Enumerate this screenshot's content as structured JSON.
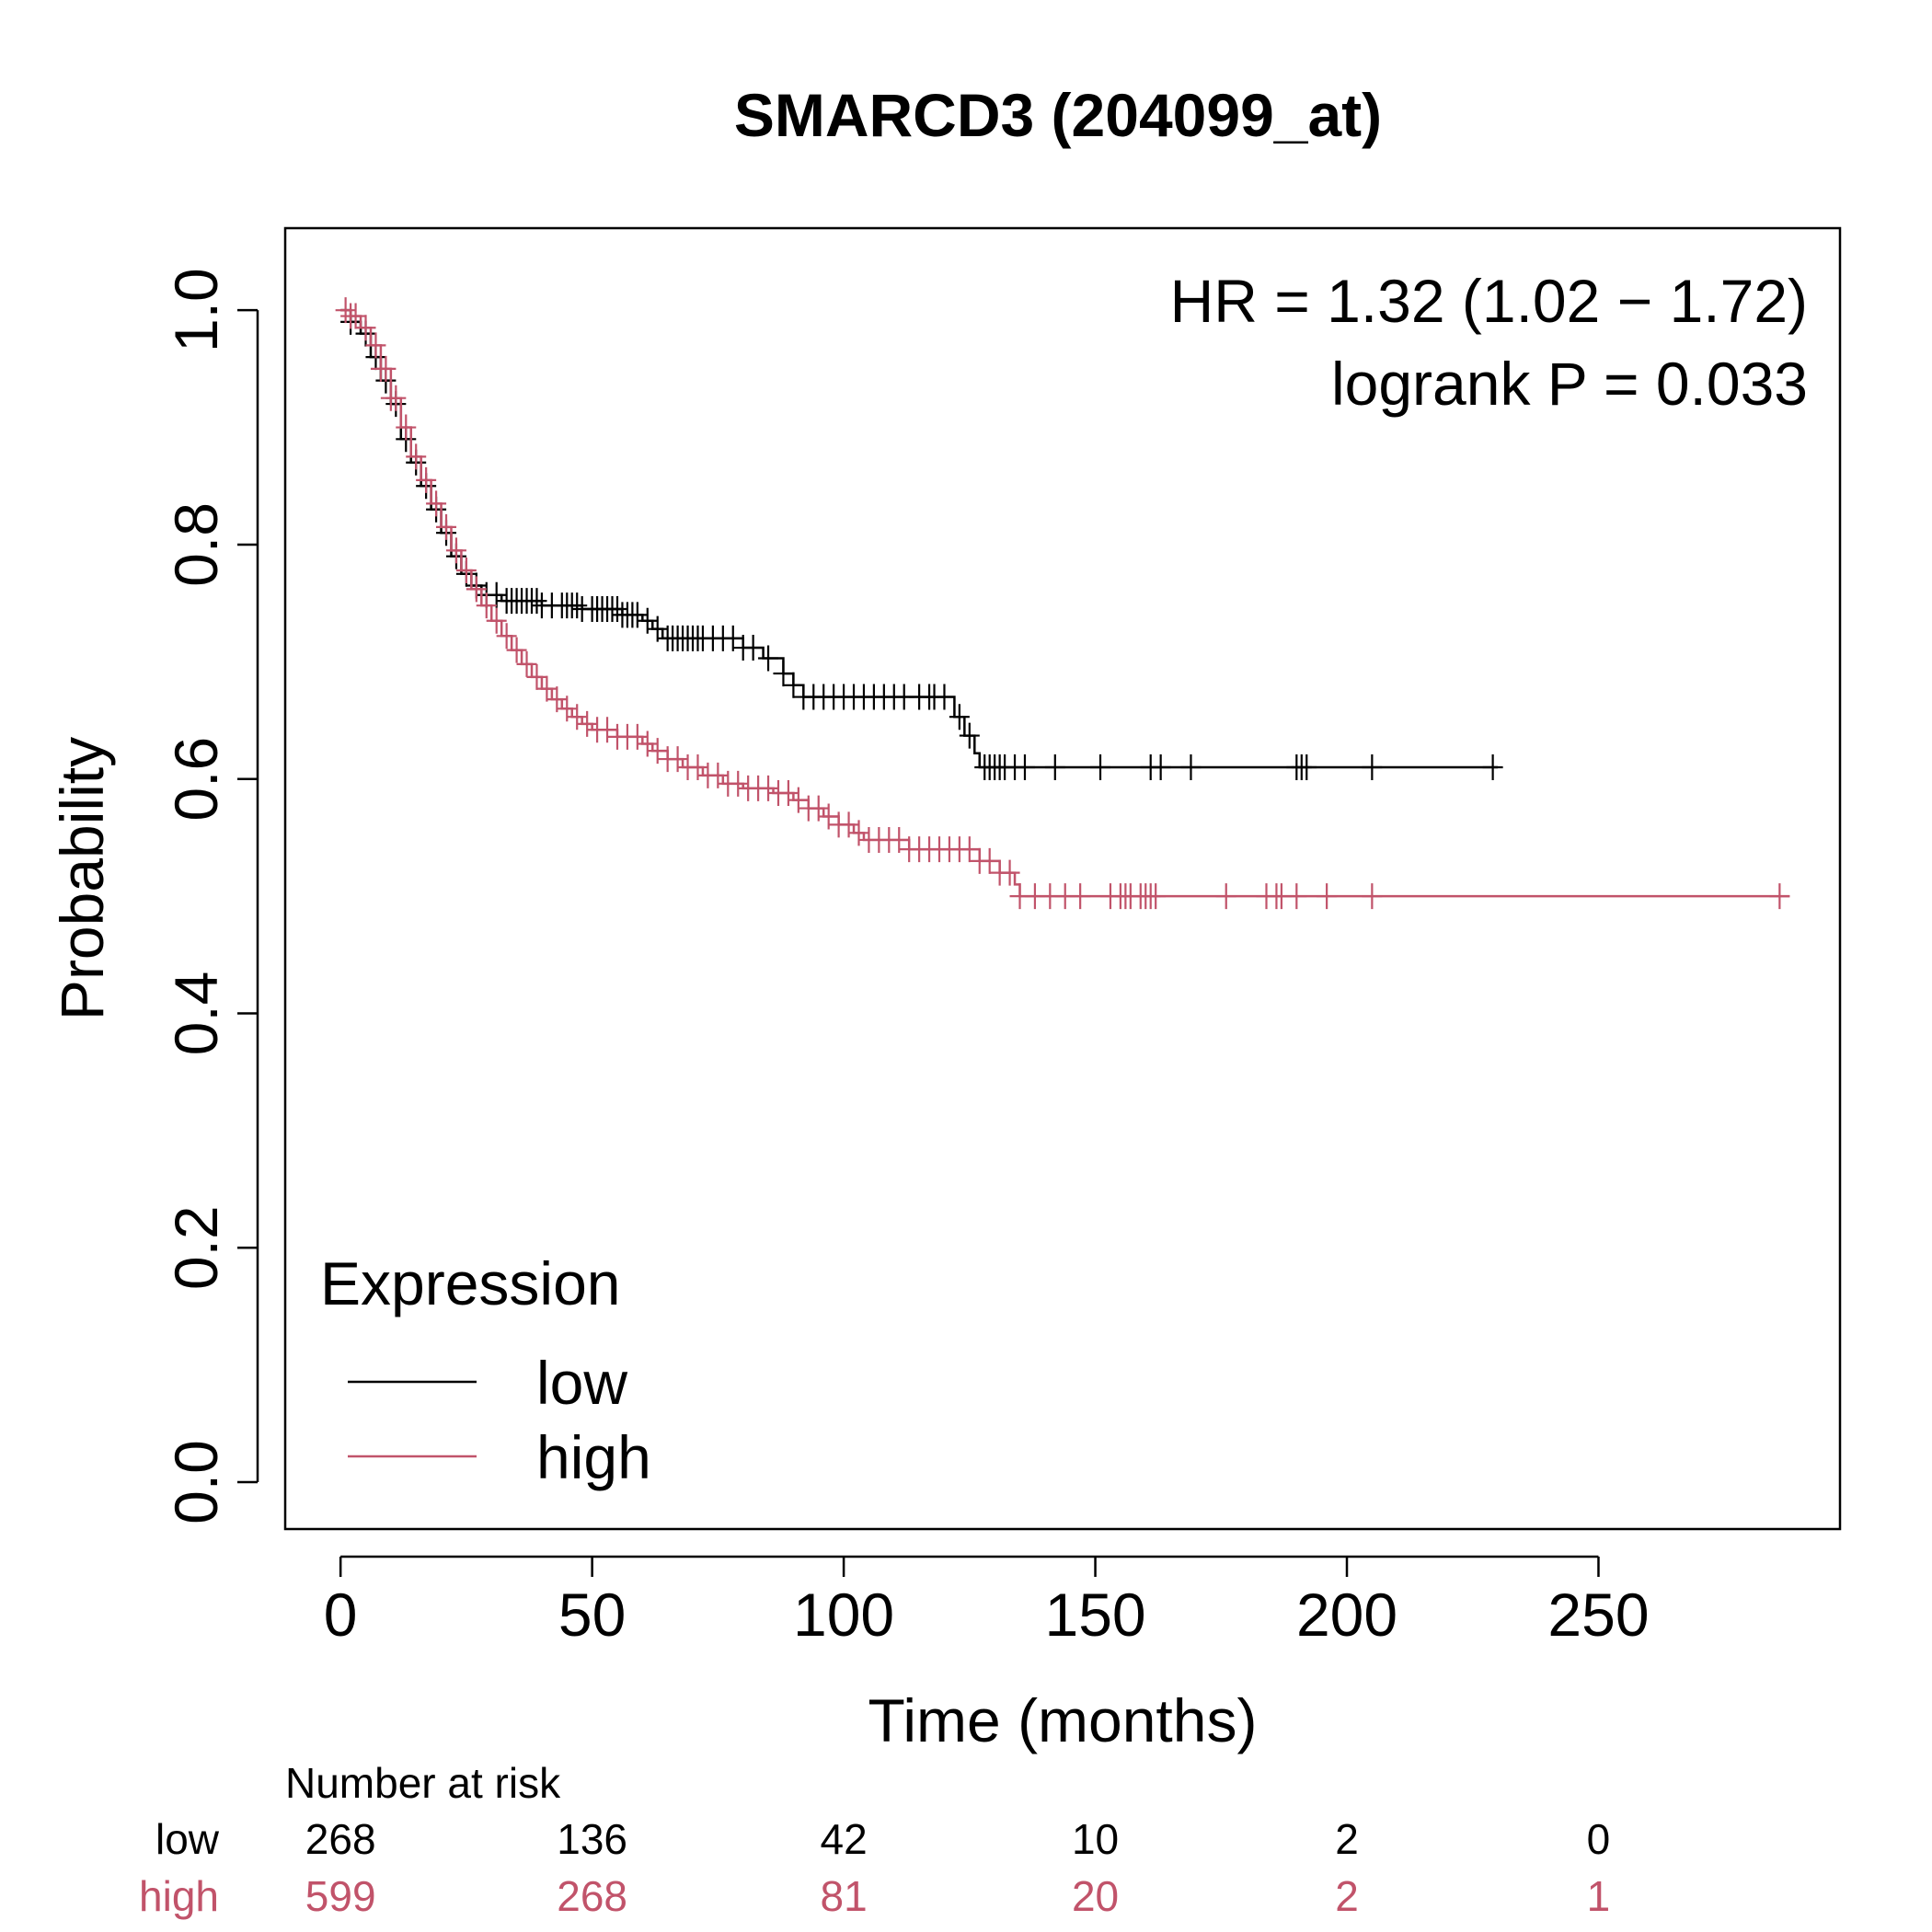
{
  "chart_data": {
    "type": "line",
    "subtype": "kaplan-meier",
    "title": "SMARCD3 (204099_at)",
    "xlabel": "Time (months)",
    "ylabel": "Probability",
    "xlim": [
      -11,
      298
    ],
    "ylim": [
      -0.04,
      1.07
    ],
    "x_ticks": [
      0,
      50,
      100,
      150,
      200,
      250
    ],
    "y_ticks": [
      0.0,
      0.2,
      0.4,
      0.6,
      0.8,
      1.0
    ],
    "x_tick_labels": [
      "0",
      "50",
      "100",
      "150",
      "200",
      "250"
    ],
    "y_tick_labels": [
      "0.0",
      "0.2",
      "0.4",
      "0.6",
      "0.8",
      "1.0"
    ],
    "grid": false,
    "annotations": {
      "hr": "HR = 1.32 (1.02 − 1.72)",
      "logrank": "logrank P = 0.033"
    },
    "legend": {
      "title": "Expression",
      "placement": "bottom-left",
      "entries": [
        {
          "label": "low",
          "color": "#000000"
        },
        {
          "label": "high",
          "color": "#c1536a"
        }
      ]
    },
    "series": [
      {
        "name": "low",
        "color": "#000000",
        "steps": [
          [
            0,
            1.0
          ],
          [
            2,
            0.99
          ],
          [
            4,
            0.98
          ],
          [
            6,
            0.96
          ],
          [
            8,
            0.94
          ],
          [
            10,
            0.92
          ],
          [
            12,
            0.89
          ],
          [
            14,
            0.87
          ],
          [
            16,
            0.85
          ],
          [
            18,
            0.83
          ],
          [
            20,
            0.81
          ],
          [
            22,
            0.79
          ],
          [
            24,
            0.775
          ],
          [
            26,
            0.765
          ],
          [
            28,
            0.757
          ],
          [
            32,
            0.752
          ],
          [
            40,
            0.748
          ],
          [
            48,
            0.745
          ],
          [
            56,
            0.74
          ],
          [
            60,
            0.735
          ],
          [
            62,
            0.728
          ],
          [
            64,
            0.72
          ],
          [
            80,
            0.712
          ],
          [
            84,
            0.703
          ],
          [
            88,
            0.69
          ],
          [
            90,
            0.68
          ],
          [
            92,
            0.67
          ],
          [
            122,
            0.653
          ],
          [
            124,
            0.637
          ],
          [
            126,
            0.622
          ],
          [
            127,
            0.61
          ],
          [
            230,
            0.61
          ]
        ],
        "censor_times": [
          2,
          5,
          7,
          9,
          11,
          13,
          15,
          17,
          19,
          21,
          23,
          25,
          27,
          29,
          31,
          33,
          34,
          35,
          36,
          37,
          38,
          39,
          40,
          42,
          44,
          45,
          46,
          47,
          48,
          50,
          51,
          52,
          53,
          54,
          55,
          56,
          57,
          58,
          59,
          61,
          63,
          65,
          66,
          67,
          68,
          69,
          70,
          71,
          72,
          74,
          76,
          78,
          80,
          82,
          85,
          88,
          90,
          92,
          94,
          96,
          98,
          100,
          102,
          104,
          106,
          108,
          110,
          112,
          115,
          117,
          118,
          120,
          123,
          125,
          128,
          129,
          130,
          131,
          132,
          134,
          136,
          142,
          151,
          161,
          163,
          169,
          190,
          191,
          192,
          205,
          229
        ],
        "at_risk": [
          268,
          136,
          42,
          10,
          2,
          0
        ]
      },
      {
        "name": "high",
        "color": "#c1536a",
        "steps": [
          [
            0,
            1.0
          ],
          [
            2,
            0.995
          ],
          [
            4,
            0.985
          ],
          [
            6,
            0.97
          ],
          [
            8,
            0.95
          ],
          [
            10,
            0.925
          ],
          [
            12,
            0.9
          ],
          [
            14,
            0.875
          ],
          [
            16,
            0.855
          ],
          [
            18,
            0.835
          ],
          [
            20,
            0.815
          ],
          [
            22,
            0.795
          ],
          [
            24,
            0.778
          ],
          [
            26,
            0.762
          ],
          [
            28,
            0.748
          ],
          [
            30,
            0.735
          ],
          [
            32,
            0.722
          ],
          [
            34,
            0.71
          ],
          [
            36,
            0.698
          ],
          [
            38,
            0.687
          ],
          [
            40,
            0.677
          ],
          [
            42,
            0.668
          ],
          [
            44,
            0.66
          ],
          [
            46,
            0.653
          ],
          [
            48,
            0.647
          ],
          [
            50,
            0.642
          ],
          [
            55,
            0.636
          ],
          [
            60,
            0.63
          ],
          [
            62,
            0.624
          ],
          [
            65,
            0.617
          ],
          [
            68,
            0.61
          ],
          [
            72,
            0.603
          ],
          [
            76,
            0.596
          ],
          [
            80,
            0.592
          ],
          [
            86,
            0.588
          ],
          [
            90,
            0.582
          ],
          [
            93,
            0.575
          ],
          [
            96,
            0.568
          ],
          [
            99,
            0.561
          ],
          [
            102,
            0.554
          ],
          [
            104,
            0.548
          ],
          [
            113,
            0.54
          ],
          [
            127,
            0.53
          ],
          [
            131,
            0.52
          ],
          [
            134,
            0.51
          ],
          [
            135,
            0.5
          ],
          [
            288,
            0.5
          ]
        ],
        "censor_times": [
          1,
          2,
          3,
          5,
          7,
          8,
          9,
          10,
          11,
          13,
          15,
          17,
          19,
          21,
          23,
          25,
          27,
          29,
          31,
          33,
          35,
          37,
          39,
          41,
          43,
          45,
          47,
          49,
          51,
          53,
          55,
          57,
          59,
          61,
          63,
          65,
          67,
          69,
          71,
          73,
          75,
          77,
          79,
          81,
          83,
          85,
          87,
          89,
          91,
          93,
          95,
          97,
          99,
          101,
          103,
          105,
          107,
          109,
          111,
          113,
          115,
          117,
          119,
          121,
          123,
          125,
          127,
          129,
          131,
          133,
          135,
          138,
          141,
          144,
          147,
          153,
          155,
          156,
          157,
          159,
          160,
          161,
          162,
          176,
          184,
          186,
          187,
          190,
          196,
          205,
          286
        ],
        "at_risk": [
          599,
          268,
          81,
          20,
          2,
          1
        ]
      }
    ],
    "risk_table": {
      "title": "Number at risk",
      "row_labels": [
        "low",
        "high"
      ]
    }
  }
}
